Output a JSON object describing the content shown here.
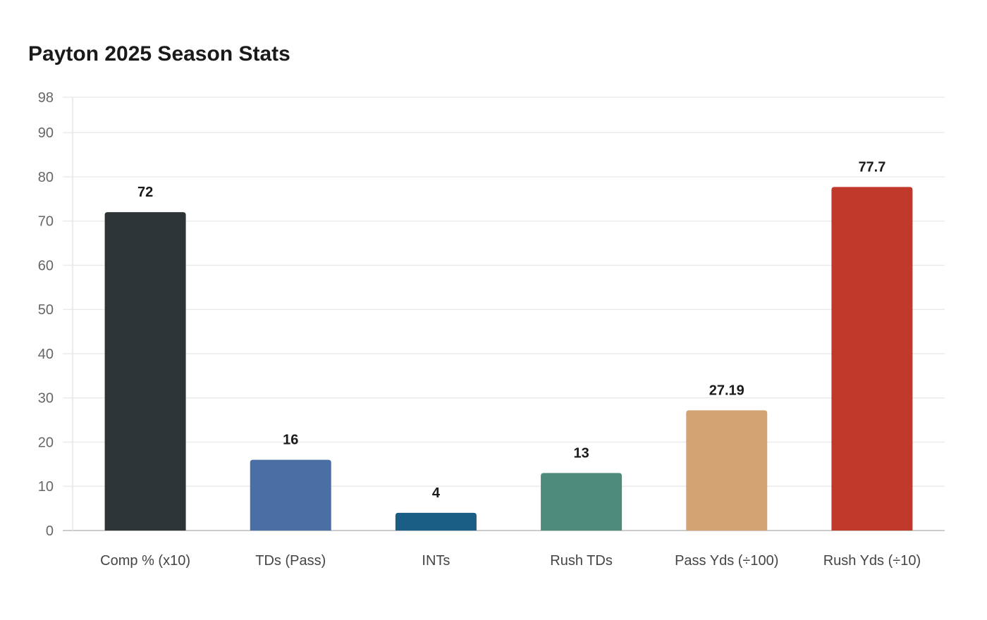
{
  "chart_data": {
    "type": "bar",
    "title": "Payton 2025 Season Stats",
    "xlabel": "",
    "ylabel": "",
    "ylim": [
      0,
      98
    ],
    "yticks": [
      0,
      10,
      20,
      30,
      40,
      50,
      60,
      70,
      80,
      90,
      98
    ],
    "grid": true,
    "categories": [
      "Comp % (x10)",
      "TDs (Pass)",
      "INTs",
      "Rush TDs",
      "Pass Yds (÷100)",
      "Rush Yds (÷10)"
    ],
    "values": [
      72,
      16,
      4,
      13,
      27.19,
      77.7
    ],
    "data_labels": [
      "72",
      "16",
      "4",
      "13",
      "27.19",
      "77.7"
    ],
    "colors": [
      "#2d3436",
      "#4a6fa5",
      "#1b5e85",
      "#4e8b7a",
      "#d4a373",
      "#c0392b"
    ]
  }
}
